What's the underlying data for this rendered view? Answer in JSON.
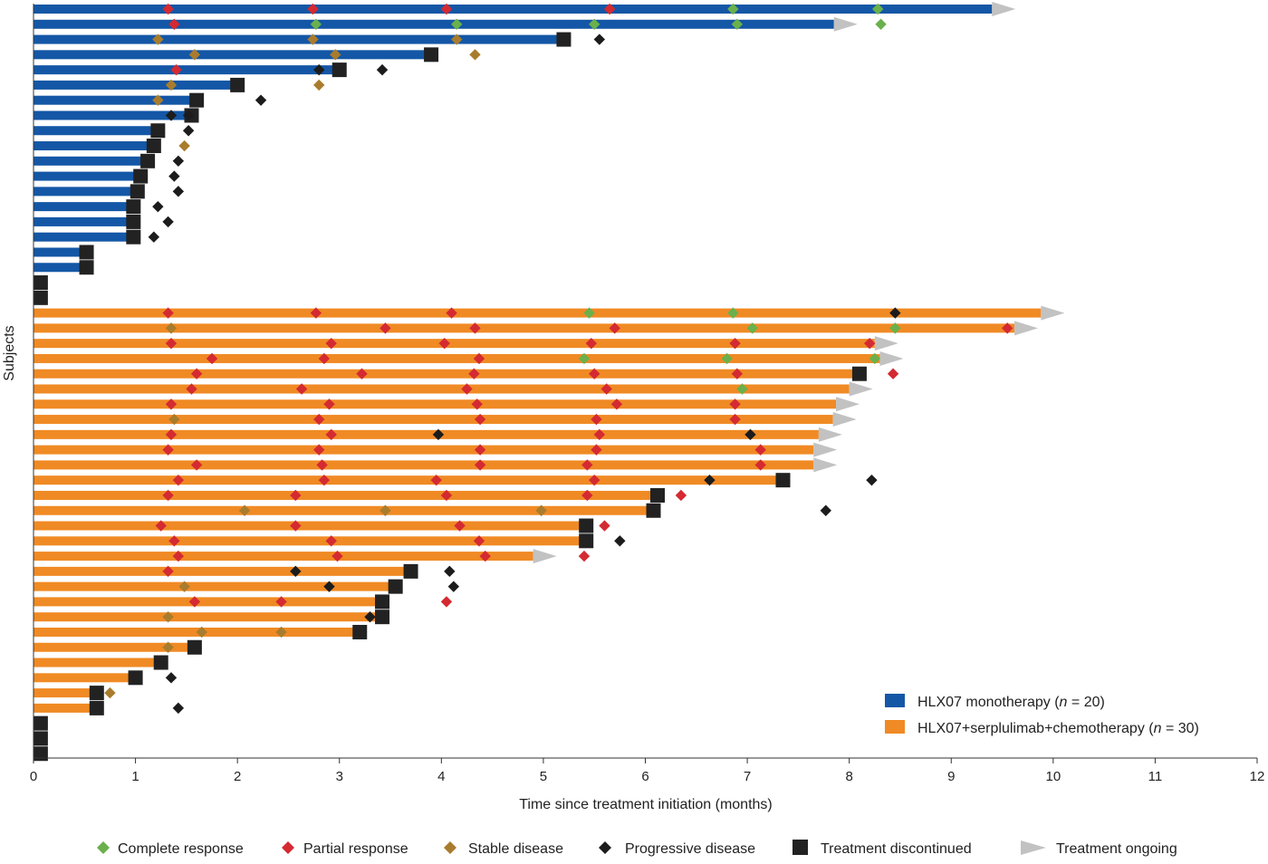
{
  "chart_data": {
    "type": "swimmer",
    "xlabel": "Time since treatment initiation (months)",
    "ylabel": "Subjects",
    "xlim": [
      0,
      12
    ],
    "x_ticks": [
      "0",
      "1",
      "2",
      "3",
      "4",
      "5",
      "6",
      "7",
      "8",
      "9",
      "10",
      "11",
      "12"
    ],
    "groups": [
      {
        "key": "mono",
        "legend": {
          "name": "HLX07 monotherapy",
          "n_prefix": "n",
          "n_suffix": " = 20)"
        },
        "color": "#1457a6"
      },
      {
        "key": "combo",
        "legend": {
          "name": "HLX07+serplulimab+chemotherapy",
          "n_prefix": "n",
          "n_suffix": " = 30)"
        },
        "color": "#f08a24"
      }
    ],
    "marker_legend": [
      {
        "key": "CR",
        "label": "Complete response",
        "color": "#6ab04c"
      },
      {
        "key": "PR",
        "label": "Partial response",
        "color": "#d42a32"
      },
      {
        "key": "SD",
        "label": "Stable disease",
        "color": "#a97c2d"
      },
      {
        "key": "PD",
        "label": "Progressive disease",
        "color": "#1c1c1c"
      },
      {
        "key": "DISC",
        "label": "Treatment discontinued",
        "color": "#222222"
      },
      {
        "key": "ONG",
        "label": "Treatment ongoing",
        "color": "#c2c2c2"
      }
    ],
    "subjects": [
      {
        "group": "mono",
        "end": 9.4,
        "end_type": "ONG",
        "events": [
          [
            "PR",
            1.32
          ],
          [
            "PR",
            2.74
          ],
          [
            "PR",
            4.05
          ],
          [
            "PR",
            5.65
          ],
          [
            "CR",
            6.86
          ],
          [
            "CR",
            8.28
          ]
        ]
      },
      {
        "group": "mono",
        "end": 7.85,
        "end_type": "ONG",
        "events": [
          [
            "PR",
            1.38
          ],
          [
            "CR",
            2.77
          ],
          [
            "CR",
            4.15
          ],
          [
            "CR",
            5.5
          ],
          [
            "CR",
            6.9
          ],
          [
            "CR",
            8.31
          ]
        ]
      },
      {
        "group": "mono",
        "end": 5.2,
        "end_type": "DISC",
        "events": [
          [
            "SD",
            1.22
          ],
          [
            "SD",
            2.74
          ],
          [
            "SD",
            4.15
          ],
          [
            "PD",
            5.55
          ]
        ]
      },
      {
        "group": "mono",
        "end": 3.9,
        "end_type": "DISC",
        "events": [
          [
            "SD",
            1.58
          ],
          [
            "SD",
            2.96
          ],
          [
            "SD",
            4.33
          ]
        ]
      },
      {
        "group": "mono",
        "end": 3.0,
        "end_type": "DISC",
        "events": [
          [
            "PR",
            1.4
          ],
          [
            "PD",
            2.8
          ],
          [
            "PD",
            3.42
          ]
        ]
      },
      {
        "group": "mono",
        "end": 2.0,
        "end_type": "DISC",
        "events": [
          [
            "SD",
            1.35
          ],
          [
            "SD",
            2.8
          ]
        ]
      },
      {
        "group": "mono",
        "end": 1.6,
        "end_type": "DISC",
        "events": [
          [
            "SD",
            1.22
          ],
          [
            "PD",
            2.23
          ]
        ]
      },
      {
        "group": "mono",
        "end": 1.55,
        "end_type": "DISC",
        "events": [
          [
            "PD",
            1.35
          ],
          [
            "PD",
            1.52
          ]
        ]
      },
      {
        "group": "mono",
        "end": 1.22,
        "end_type": "DISC",
        "events": [
          [
            "PD",
            1.52
          ]
        ]
      },
      {
        "group": "mono",
        "end": 1.18,
        "end_type": "DISC",
        "events": [
          [
            "SD",
            1.48
          ]
        ]
      },
      {
        "group": "mono",
        "end": 1.12,
        "end_type": "DISC",
        "events": [
          [
            "PD",
            1.42
          ]
        ]
      },
      {
        "group": "mono",
        "end": 1.05,
        "end_type": "DISC",
        "events": [
          [
            "PD",
            1.38
          ]
        ]
      },
      {
        "group": "mono",
        "end": 1.02,
        "end_type": "DISC",
        "events": [
          [
            "PD",
            1.42
          ]
        ]
      },
      {
        "group": "mono",
        "end": 0.98,
        "end_type": "DISC",
        "events": [
          [
            "PD",
            1.22
          ]
        ]
      },
      {
        "group": "mono",
        "end": 0.98,
        "end_type": "DISC",
        "events": [
          [
            "PD",
            1.32
          ]
        ]
      },
      {
        "group": "mono",
        "end": 0.98,
        "end_type": "DISC",
        "events": [
          [
            "PD",
            1.18
          ]
        ]
      },
      {
        "group": "mono",
        "end": 0.52,
        "end_type": "DISC",
        "events": []
      },
      {
        "group": "mono",
        "end": 0.52,
        "end_type": "DISC",
        "events": []
      },
      {
        "group": "mono",
        "end": 0.07,
        "end_type": "DISC",
        "events": []
      },
      {
        "group": "mono",
        "end": 0.07,
        "end_type": "DISC",
        "events": []
      },
      {
        "group": "combo",
        "end": 9.88,
        "end_type": "ONG",
        "events": [
          [
            "PR",
            1.32
          ],
          [
            "PR",
            2.77
          ],
          [
            "PR",
            4.1
          ],
          [
            "CR",
            5.45
          ],
          [
            "CR",
            6.86
          ],
          [
            "PD",
            8.45
          ]
        ]
      },
      {
        "group": "combo",
        "end": 9.62,
        "end_type": "ONG",
        "events": [
          [
            "SD",
            1.35
          ],
          [
            "PR",
            3.45
          ],
          [
            "PR",
            4.33
          ],
          [
            "PR",
            5.7
          ],
          [
            "CR",
            7.05
          ],
          [
            "CR",
            8.45
          ],
          [
            "PR",
            9.55
          ]
        ]
      },
      {
        "group": "combo",
        "end": 8.25,
        "end_type": "ONG",
        "events": [
          [
            "PR",
            1.35
          ],
          [
            "PR",
            2.92
          ],
          [
            "PR",
            4.03
          ],
          [
            "PR",
            5.47
          ],
          [
            "PR",
            6.88
          ],
          [
            "PR",
            8.2
          ]
        ]
      },
      {
        "group": "combo",
        "end": 8.3,
        "end_type": "ONG",
        "events": [
          [
            "PR",
            1.75
          ],
          [
            "PR",
            2.85
          ],
          [
            "PR",
            4.37
          ],
          [
            "CR",
            5.4
          ],
          [
            "CR",
            6.8
          ],
          [
            "CR",
            8.25
          ]
        ]
      },
      {
        "group": "combo",
        "end": 8.1,
        "end_type": "DISC",
        "events": [
          [
            "PR",
            1.6
          ],
          [
            "PR",
            3.22
          ],
          [
            "PR",
            4.32
          ],
          [
            "PR",
            5.5
          ],
          [
            "PR",
            6.9
          ],
          [
            "PR",
            8.43
          ]
        ]
      },
      {
        "group": "combo",
        "end": 8.0,
        "end_type": "ONG",
        "events": [
          [
            "PR",
            1.55
          ],
          [
            "PR",
            2.63
          ],
          [
            "PR",
            4.25
          ],
          [
            "PR",
            5.62
          ],
          [
            "CR",
            6.95
          ]
        ]
      },
      {
        "group": "combo",
        "end": 7.87,
        "end_type": "ONG",
        "events": [
          [
            "PR",
            1.35
          ],
          [
            "PR",
            2.9
          ],
          [
            "PR",
            4.35
          ],
          [
            "PR",
            5.72
          ],
          [
            "PR",
            6.88
          ]
        ]
      },
      {
        "group": "combo",
        "end": 7.84,
        "end_type": "ONG",
        "events": [
          [
            "SD",
            1.38
          ],
          [
            "PR",
            2.8
          ],
          [
            "PR",
            4.38
          ],
          [
            "PR",
            5.52
          ],
          [
            "PR",
            6.88
          ]
        ]
      },
      {
        "group": "combo",
        "end": 7.7,
        "end_type": "ONG",
        "events": [
          [
            "PR",
            1.35
          ],
          [
            "PR",
            2.92
          ],
          [
            "PD",
            3.97
          ],
          [
            "PR",
            5.55
          ],
          [
            "PD",
            7.03
          ]
        ]
      },
      {
        "group": "combo",
        "end": 7.65,
        "end_type": "ONG",
        "events": [
          [
            "PR",
            1.32
          ],
          [
            "PR",
            2.8
          ],
          [
            "PR",
            4.38
          ],
          [
            "PR",
            5.52
          ],
          [
            "PR",
            7.13
          ]
        ]
      },
      {
        "group": "combo",
        "end": 7.65,
        "end_type": "ONG",
        "events": [
          [
            "PR",
            1.6
          ],
          [
            "PR",
            2.83
          ],
          [
            "PR",
            4.38
          ],
          [
            "PR",
            5.43
          ],
          [
            "PR",
            7.13
          ]
        ]
      },
      {
        "group": "combo",
        "end": 7.35,
        "end_type": "DISC",
        "events": [
          [
            "PR",
            1.42
          ],
          [
            "PR",
            2.85
          ],
          [
            "PR",
            3.95
          ],
          [
            "PR",
            5.5
          ],
          [
            "PD",
            6.63
          ],
          [
            "PD",
            8.22
          ]
        ]
      },
      {
        "group": "combo",
        "end": 6.12,
        "end_type": "DISC",
        "events": [
          [
            "PR",
            1.32
          ],
          [
            "PR",
            2.57
          ],
          [
            "PR",
            4.05
          ],
          [
            "PR",
            5.43
          ],
          [
            "PR",
            6.35
          ]
        ]
      },
      {
        "group": "combo",
        "end": 6.08,
        "end_type": "DISC",
        "events": [
          [
            "SD",
            2.07
          ],
          [
            "SD",
            3.45
          ],
          [
            "SD",
            4.98
          ],
          [
            "PD",
            7.77
          ]
        ]
      },
      {
        "group": "combo",
        "end": 5.42,
        "end_type": "DISC",
        "events": [
          [
            "PR",
            1.25
          ],
          [
            "PR",
            2.57
          ],
          [
            "PR",
            4.18
          ],
          [
            "PR",
            5.6
          ]
        ]
      },
      {
        "group": "combo",
        "end": 5.42,
        "end_type": "DISC",
        "events": [
          [
            "PR",
            1.38
          ],
          [
            "PR",
            2.92
          ],
          [
            "PR",
            4.37
          ],
          [
            "PD",
            5.75
          ]
        ]
      },
      {
        "group": "combo",
        "end": 4.9,
        "end_type": "ONG",
        "events": [
          [
            "PR",
            1.42
          ],
          [
            "PR",
            2.98
          ],
          [
            "PR",
            4.43
          ],
          [
            "PR",
            5.4
          ]
        ]
      },
      {
        "group": "combo",
        "end": 3.7,
        "end_type": "DISC",
        "events": [
          [
            "PR",
            1.32
          ],
          [
            "PD",
            2.57
          ],
          [
            "PD",
            4.08
          ]
        ]
      },
      {
        "group": "combo",
        "end": 3.55,
        "end_type": "DISC",
        "events": [
          [
            "SD",
            1.48
          ],
          [
            "PD",
            2.9
          ],
          [
            "PD",
            4.12
          ]
        ]
      },
      {
        "group": "combo",
        "end": 3.42,
        "end_type": "DISC",
        "events": [
          [
            "PR",
            1.58
          ],
          [
            "PR",
            2.43
          ],
          [
            "PR",
            4.05
          ]
        ]
      },
      {
        "group": "combo",
        "end": 3.42,
        "end_type": "DISC",
        "events": [
          [
            "SD",
            1.32
          ],
          [
            "PD",
            3.3
          ]
        ]
      },
      {
        "group": "combo",
        "end": 3.2,
        "end_type": "DISC",
        "events": [
          [
            "SD",
            1.65
          ],
          [
            "SD",
            2.43
          ]
        ]
      },
      {
        "group": "combo",
        "end": 1.58,
        "end_type": "DISC",
        "events": [
          [
            "SD",
            1.32
          ]
        ]
      },
      {
        "group": "combo",
        "end": 1.25,
        "end_type": "DISC",
        "events": []
      },
      {
        "group": "combo",
        "end": 1.0,
        "end_type": "DISC",
        "events": [
          [
            "PD",
            1.35
          ]
        ]
      },
      {
        "group": "combo",
        "end": 0.62,
        "end_type": "DISC",
        "events": [
          [
            "SD",
            0.75
          ]
        ]
      },
      {
        "group": "combo",
        "end": 0.62,
        "end_type": "DISC",
        "events": [
          [
            "PD",
            1.42
          ]
        ]
      },
      {
        "group": "combo",
        "end": 0.07,
        "end_type": "DISC",
        "events": []
      },
      {
        "group": "combo",
        "end": 0.07,
        "end_type": "DISC",
        "events": []
      },
      {
        "group": "combo",
        "end": 0.07,
        "end_type": "DISC",
        "events": []
      }
    ]
  }
}
